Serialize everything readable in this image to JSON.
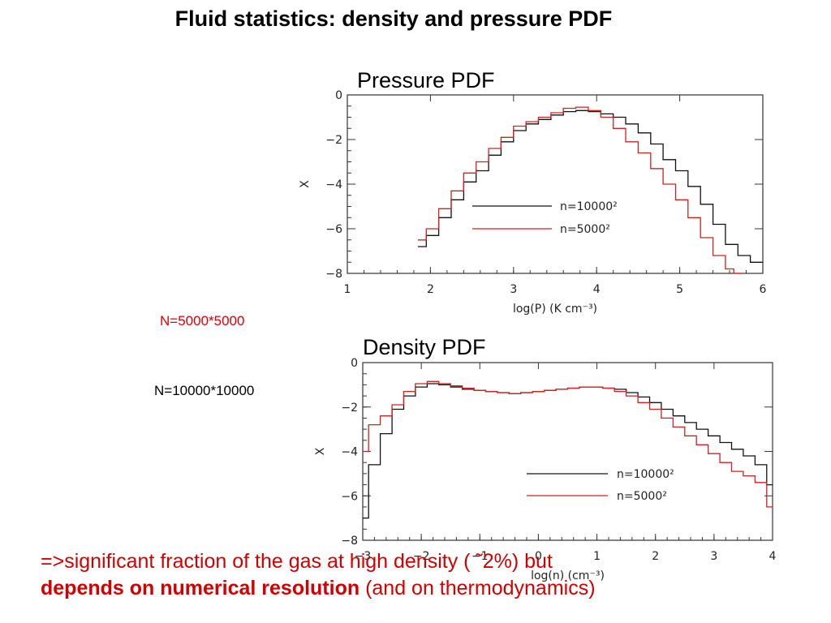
{
  "slide": {
    "title": "Fluid statistics: density and pressure PDF",
    "note_red": "N=5000*5000",
    "note_black": "N=10000*10000",
    "note_red_color": "#e00000",
    "footer": {
      "line1": "=>significant fraction of the gas at high density  (  ˜2%) but",
      "bold": "depends on numerical resolution",
      "rest": " (and on thermodynamics)",
      "color": "#d40000"
    }
  },
  "chart_data": [
    {
      "type": "line",
      "step": true,
      "title": "Pressure PDF",
      "xlabel": "log(P)  (K cm⁻³)",
      "ylabel": "X",
      "xlim": [
        1,
        6
      ],
      "ylim": [
        -8,
        0
      ],
      "xticks": [
        "1",
        "2",
        "3",
        "4",
        "5",
        "6"
      ],
      "yticks": [
        "0",
        "−2",
        "−4",
        "−6",
        "−8"
      ],
      "series": [
        {
          "name": "n=10000²",
          "color": "#111111",
          "x": [
            1.85,
            1.95,
            2.1,
            2.25,
            2.4,
            2.55,
            2.7,
            2.85,
            3.0,
            3.15,
            3.3,
            3.45,
            3.6,
            3.75,
            3.9,
            4.05,
            4.2,
            4.35,
            4.5,
            4.65,
            4.8,
            4.95,
            5.1,
            5.25,
            5.4,
            5.55,
            5.7,
            5.85
          ],
          "y": [
            -6.8,
            -6.3,
            -5.5,
            -4.7,
            -3.9,
            -3.4,
            -2.7,
            -2.1,
            -1.6,
            -1.3,
            -1.1,
            -0.9,
            -0.75,
            -0.7,
            -0.75,
            -0.85,
            -1.0,
            -1.3,
            -1.7,
            -2.2,
            -2.9,
            -3.4,
            -4.1,
            -4.9,
            -5.8,
            -6.7,
            -7.2,
            -7.5
          ]
        },
        {
          "name": "n=5000²",
          "color": "#d02020",
          "x": [
            1.85,
            1.95,
            2.1,
            2.25,
            2.4,
            2.55,
            2.7,
            2.85,
            3.0,
            3.15,
            3.3,
            3.45,
            3.6,
            3.75,
            3.9,
            4.05,
            4.2,
            4.35,
            4.5,
            4.65,
            4.8,
            4.95,
            5.1,
            5.25,
            5.4,
            5.55,
            5.65
          ],
          "y": [
            -6.5,
            -6.0,
            -5.1,
            -4.3,
            -3.5,
            -3.0,
            -2.4,
            -1.9,
            -1.4,
            -1.2,
            -1.0,
            -0.8,
            -0.6,
            -0.55,
            -0.7,
            -1.0,
            -1.5,
            -2.1,
            -2.6,
            -3.3,
            -4.0,
            -4.7,
            -5.5,
            -6.4,
            -7.2,
            -7.8,
            -8.0
          ]
        }
      ],
      "legend": "right-middle"
    },
    {
      "type": "line",
      "step": true,
      "title": "Density PDF",
      "xlabel": "log(n)  (cm⁻³)",
      "ylabel": "X",
      "xlim": [
        -3,
        4
      ],
      "ylim": [
        -8,
        0
      ],
      "xticks": [
        "−3",
        "−2",
        "−1",
        "0",
        "1",
        "2",
        "3",
        "4"
      ],
      "yticks": [
        "0",
        "−2",
        "−4",
        "−6",
        "−8"
      ],
      "series": [
        {
          "name": "n=10000²",
          "color": "#111111",
          "x": [
            -3.0,
            -2.9,
            -2.7,
            -2.5,
            -2.3,
            -2.1,
            -1.9,
            -1.7,
            -1.5,
            -1.3,
            -1.1,
            -0.9,
            -0.7,
            -0.5,
            -0.3,
            -0.1,
            0.1,
            0.3,
            0.5,
            0.7,
            0.9,
            1.1,
            1.3,
            1.5,
            1.7,
            1.9,
            2.1,
            2.3,
            2.5,
            2.7,
            2.9,
            3.1,
            3.3,
            3.5,
            3.7,
            3.9
          ],
          "y": [
            -7.0,
            -4.6,
            -3.2,
            -2.1,
            -1.5,
            -1.1,
            -0.95,
            -1.0,
            -1.1,
            -1.2,
            -1.25,
            -1.3,
            -1.35,
            -1.4,
            -1.35,
            -1.3,
            -1.25,
            -1.2,
            -1.15,
            -1.1,
            -1.1,
            -1.15,
            -1.2,
            -1.35,
            -1.55,
            -1.8,
            -2.1,
            -2.4,
            -2.7,
            -3.0,
            -3.3,
            -3.6,
            -3.9,
            -4.2,
            -4.6,
            -5.5
          ]
        },
        {
          "name": "n=5000²",
          "color": "#d02020",
          "x": [
            -3.0,
            -2.9,
            -2.7,
            -2.5,
            -2.3,
            -2.1,
            -1.9,
            -1.7,
            -1.5,
            -1.3,
            -1.1,
            -0.9,
            -0.7,
            -0.5,
            -0.3,
            -0.1,
            0.1,
            0.3,
            0.5,
            0.7,
            0.9,
            1.1,
            1.3,
            1.5,
            1.7,
            1.9,
            2.1,
            2.3,
            2.5,
            2.7,
            2.9,
            3.1,
            3.3,
            3.5,
            3.7,
            3.9
          ],
          "y": [
            -4.0,
            -2.8,
            -2.4,
            -1.9,
            -1.3,
            -0.95,
            -0.85,
            -0.95,
            -1.05,
            -1.15,
            -1.25,
            -1.3,
            -1.35,
            -1.4,
            -1.35,
            -1.3,
            -1.25,
            -1.2,
            -1.15,
            -1.1,
            -1.1,
            -1.15,
            -1.3,
            -1.5,
            -1.8,
            -2.1,
            -2.5,
            -2.9,
            -3.3,
            -3.7,
            -4.1,
            -4.5,
            -4.9,
            -5.1,
            -5.4,
            -6.5
          ]
        }
      ],
      "legend": "right-middle"
    }
  ]
}
